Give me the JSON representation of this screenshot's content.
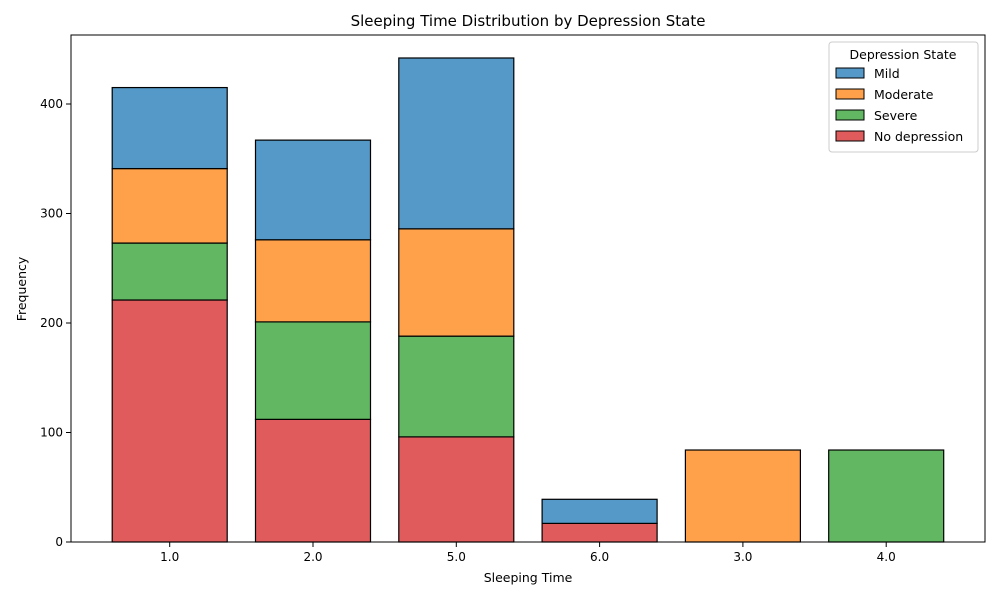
{
  "chart_data": {
    "type": "bar",
    "stacked": true,
    "title": "Sleeping Time Distribution by Depression State",
    "xlabel": "Sleeping Time",
    "ylabel": "Frequency",
    "categories": [
      "1.0",
      "2.0",
      "5.0",
      "6.0",
      "3.0",
      "4.0"
    ],
    "ylim": [
      0,
      463
    ],
    "yticks": [
      0,
      100,
      200,
      300,
      400
    ],
    "grid": false,
    "legend": {
      "title": "Depression State",
      "placement": "top-right"
    },
    "series": [
      {
        "name": "No depression",
        "color": "#e05c5c",
        "values": [
          221,
          112,
          96,
          17,
          0,
          0
        ]
      },
      {
        "name": "Severe",
        "color": "#62b862",
        "values": [
          52,
          89,
          92,
          0,
          0,
          84
        ]
      },
      {
        "name": "Moderate",
        "color": "#ffa04a",
        "values": [
          68,
          75,
          98,
          0,
          84,
          0
        ]
      },
      {
        "name": "Mild",
        "color": "#5499c7",
        "values": [
          74,
          91,
          156,
          22,
          0,
          0
        ]
      }
    ],
    "legend_order": [
      "Mild",
      "Moderate",
      "Severe",
      "No depression"
    ]
  }
}
